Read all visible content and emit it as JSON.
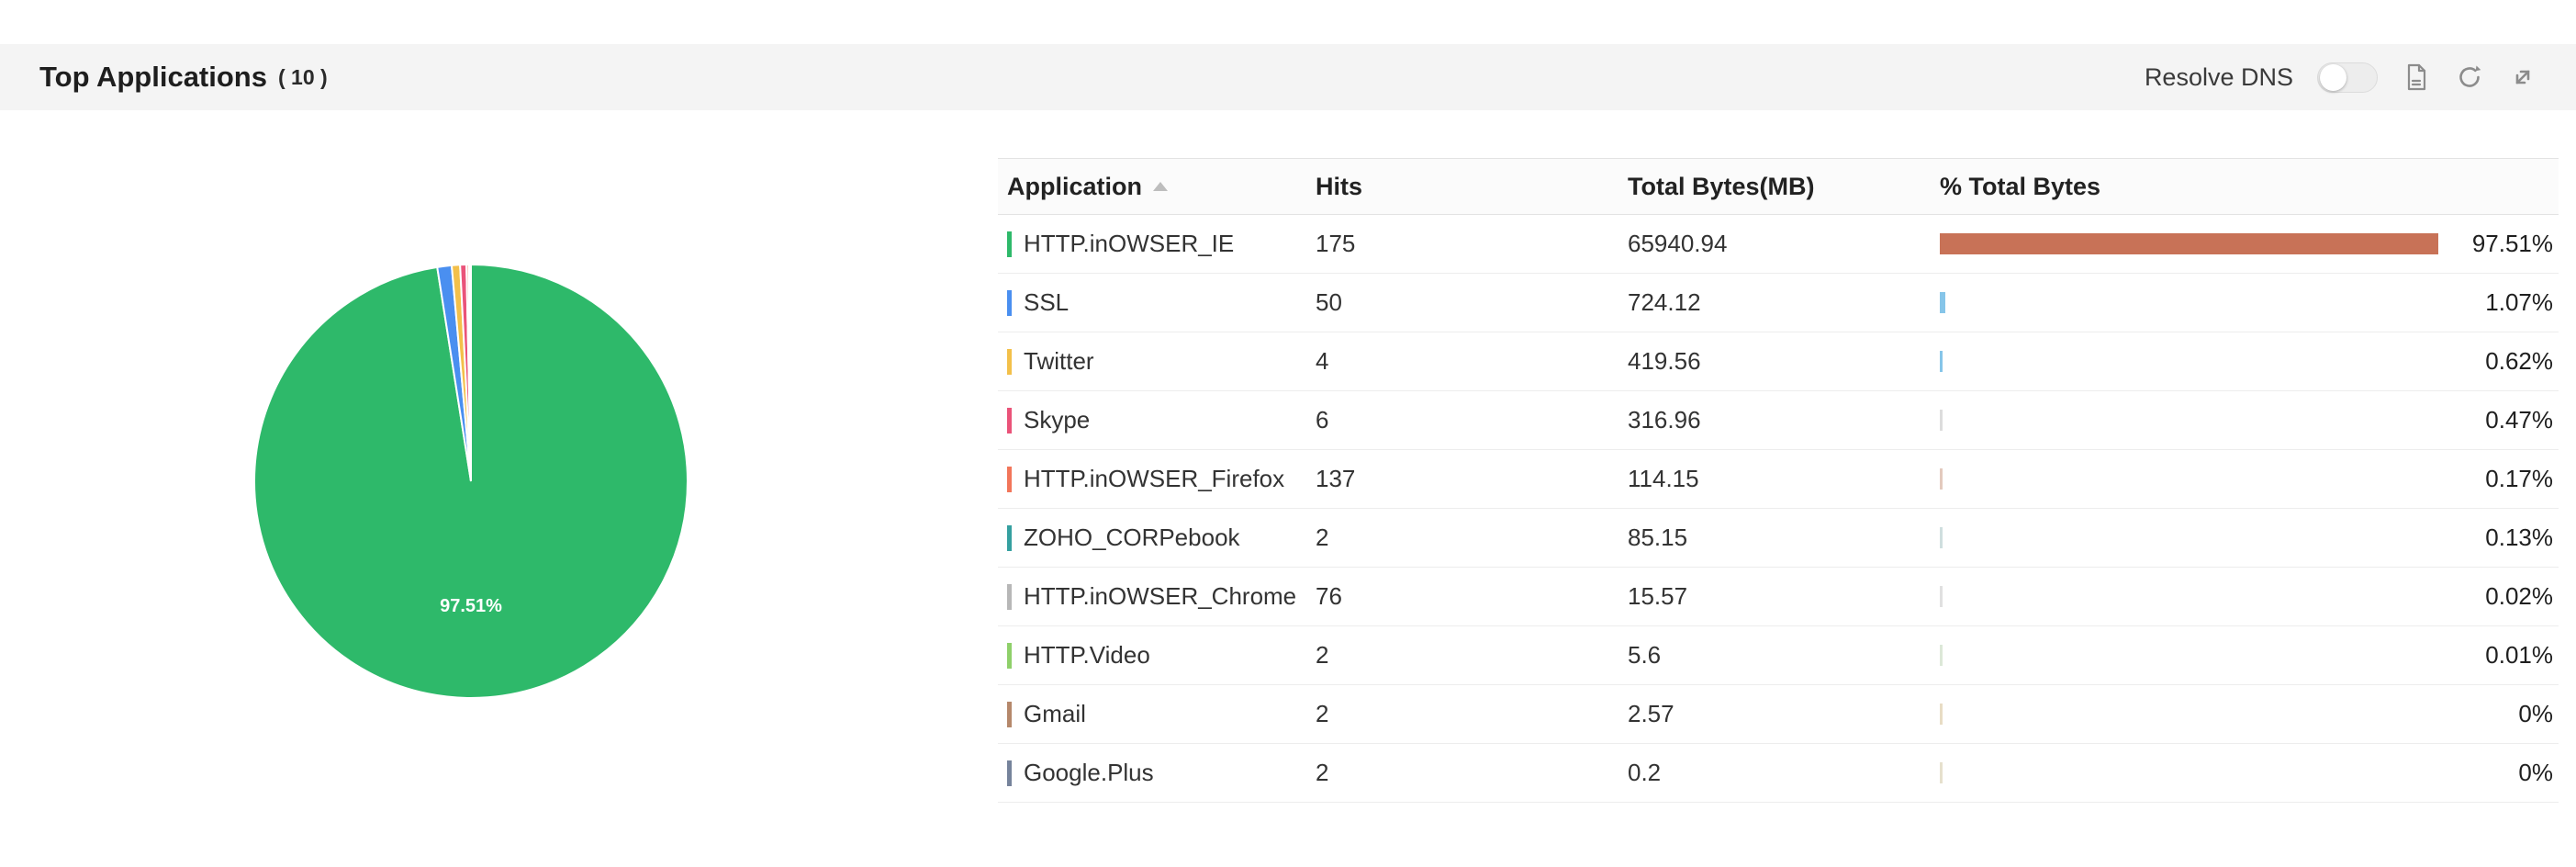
{
  "header": {
    "title": "Top Applications",
    "count": "( 10 )",
    "resolve_dns_label": "Resolve DNS",
    "resolve_dns_state": "off"
  },
  "table": {
    "columns": {
      "application": "Application",
      "hits": "Hits",
      "total_bytes": "Total Bytes(MB)",
      "pct_total_bytes": "% Total Bytes"
    },
    "rows": [
      {
        "app": "HTTP.inOWSER_IE",
        "hits": "175",
        "bytes": "65940.94",
        "pct": "97.51%",
        "pct_value": 97.51,
        "marker_color": "#2eb96a",
        "bar_color": "#c87257"
      },
      {
        "app": "SSL",
        "hits": "50",
        "bytes": "724.12",
        "pct": "1.07%",
        "pct_value": 1.07,
        "marker_color": "#4a8ff0",
        "bar_color": "#86c5e9"
      },
      {
        "app": "Twitter",
        "hits": "4",
        "bytes": "419.56",
        "pct": "0.62%",
        "pct_value": 0.62,
        "marker_color": "#f3c04a",
        "bar_color": "#86c5e9"
      },
      {
        "app": "Skype",
        "hits": "6",
        "bytes": "316.96",
        "pct": "0.47%",
        "pct_value": 0.47,
        "marker_color": "#ea5379",
        "bar_color": "#dcdcdc"
      },
      {
        "app": "HTTP.inOWSER_Firefox",
        "hits": "137",
        "bytes": "114.15",
        "pct": "0.17%",
        "pct_value": 0.17,
        "marker_color": "#f2765a",
        "bar_color": "#e3cabe"
      },
      {
        "app": "ZOHO_CORPebook",
        "hits": "2",
        "bytes": "85.15",
        "pct": "0.13%",
        "pct_value": 0.13,
        "marker_color": "#35a0a0",
        "bar_color": "#cfdede"
      },
      {
        "app": "HTTP.inOWSER_Chrome",
        "hits": "76",
        "bytes": "15.57",
        "pct": "0.02%",
        "pct_value": 0.02,
        "marker_color": "#b7b7b7",
        "bar_color": "#e0e0e0"
      },
      {
        "app": "HTTP.Video",
        "hits": "2",
        "bytes": "5.6",
        "pct": "0.01%",
        "pct_value": 0.01,
        "marker_color": "#8fd06a",
        "bar_color": "#dce8d8"
      },
      {
        "app": "Gmail",
        "hits": "2",
        "bytes": "2.57",
        "pct": "0%",
        "pct_value": 0,
        "marker_color": "#b5886b",
        "bar_color": "#e8dcc4"
      },
      {
        "app": "Google.Plus",
        "hits": "2",
        "bytes": "0.2",
        "pct": "0%",
        "pct_value": 0,
        "marker_color": "#76839b",
        "bar_color": "#e6e0cd"
      }
    ]
  },
  "chart_data": {
    "type": "pie",
    "title": "Top Applications",
    "labels": [
      "HTTP.inOWSER_IE",
      "SSL",
      "Twitter",
      "Skype",
      "HTTP.inOWSER_Firefox",
      "ZOHO_CORPebook",
      "HTTP.inOWSER_Chrome",
      "HTTP.Video",
      "Gmail",
      "Google.Plus"
    ],
    "values": [
      97.51,
      1.07,
      0.62,
      0.47,
      0.17,
      0.13,
      0.02,
      0.01,
      0,
      0
    ],
    "colors": [
      "#2eb96a",
      "#4a8ff0",
      "#f3c04a",
      "#ea5379",
      "#f2765a",
      "#35a0a0",
      "#b7b7b7",
      "#8fd06a",
      "#b5886b",
      "#76839b"
    ],
    "center_label": "97.51%",
    "legend": "none"
  }
}
